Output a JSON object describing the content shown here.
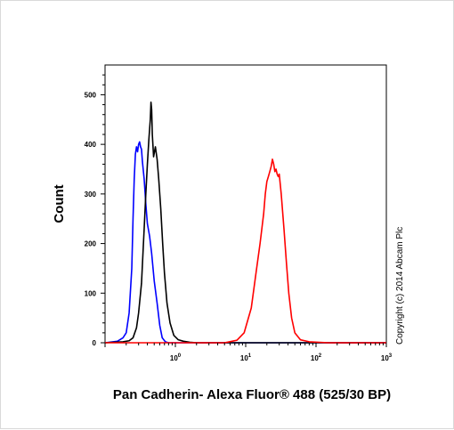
{
  "chart_data": {
    "type": "line",
    "xscale": "log",
    "xlim": [
      0.1,
      1000
    ],
    "ylim": [
      0,
      560
    ],
    "ylabel": "Count",
    "xlabel": "Pan Cadherin- Alexa Fluor® 488 (525/30 BP)",
    "yticks": [
      "0",
      "100",
      "200",
      "300",
      "400",
      "500"
    ],
    "ytick_values": [
      0,
      100,
      200,
      300,
      400,
      500
    ],
    "xticks": [
      {
        "value": 1,
        "base": "10",
        "exp": "0"
      },
      {
        "value": 10,
        "base": "10",
        "exp": "1"
      },
      {
        "value": 100,
        "base": "10",
        "exp": "2"
      },
      {
        "value": 1000,
        "base": "10",
        "exp": "3"
      }
    ],
    "copyright": "Copyright (c) 2014 Abcam Plc",
    "series": [
      {
        "color": "#0000ff",
        "x": [
          0.1,
          0.15,
          0.18,
          0.2,
          0.22,
          0.24,
          0.25,
          0.26,
          0.27,
          0.28,
          0.29,
          0.3,
          0.31,
          0.32,
          0.33,
          0.34,
          0.36,
          0.38,
          0.4,
          0.43,
          0.46,
          0.5,
          0.55,
          0.6,
          0.65,
          0.72,
          0.8,
          1.0,
          10,
          100,
          1000
        ],
        "y": [
          0,
          3,
          10,
          20,
          60,
          150,
          250,
          330,
          380,
          395,
          385,
          400,
          405,
          395,
          390,
          365,
          330,
          280,
          240,
          215,
          180,
          125,
          80,
          35,
          10,
          2,
          0,
          0,
          0,
          0,
          0
        ]
      },
      {
        "color": "#000000",
        "x": [
          0.1,
          0.18,
          0.2,
          0.22,
          0.25,
          0.28,
          0.3,
          0.33,
          0.36,
          0.38,
          0.4,
          0.42,
          0.44,
          0.45,
          0.46,
          0.47,
          0.49,
          0.52,
          0.55,
          0.58,
          0.62,
          0.66,
          0.7,
          0.76,
          0.84,
          0.95,
          1.1,
          1.3,
          1.6,
          2.0,
          10,
          100,
          1000
        ],
        "y": [
          0,
          2,
          3,
          4,
          10,
          30,
          60,
          120,
          230,
          300,
          360,
          410,
          450,
          485,
          470,
          420,
          375,
          395,
          370,
          330,
          270,
          200,
          140,
          80,
          40,
          15,
          6,
          3,
          1,
          0,
          0,
          0,
          0
        ]
      },
      {
        "color": "#ff0000",
        "x": [
          0.1,
          1.0,
          5.0,
          7.5,
          9.5,
          12,
          14,
          16,
          18,
          19,
          20,
          21,
          22,
          23,
          24,
          25,
          26,
          27,
          28,
          29,
          30,
          32,
          35,
          38,
          41,
          45,
          50,
          60,
          80,
          150,
          1000
        ],
        "y": [
          0,
          0,
          0,
          5,
          20,
          70,
          140,
          200,
          260,
          300,
          325,
          335,
          345,
          355,
          370,
          360,
          345,
          350,
          340,
          335,
          340,
          300,
          230,
          160,
          100,
          50,
          20,
          6,
          2,
          0,
          0
        ]
      }
    ]
  }
}
